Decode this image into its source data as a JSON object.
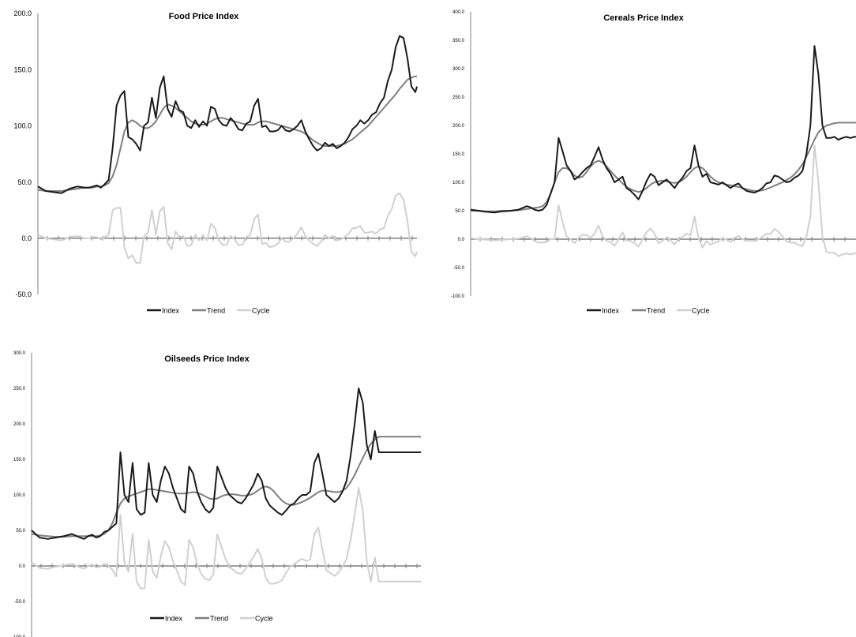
{
  "chart_data": [
    {
      "type": "line",
      "title": "Food Price Index",
      "xlabel": "",
      "ylabel": "",
      "ylim": [
        -50,
        200
      ],
      "y_ticks": [
        "200.0",
        "150.0",
        "100.0",
        "50.0",
        "0.0",
        "-50.0"
      ],
      "grid": false,
      "legend_position": "bottom",
      "x": [
        0,
        10,
        20,
        30,
        40,
        50,
        60,
        65,
        70,
        75,
        80,
        85,
        90,
        95,
        100,
        105,
        110,
        115,
        120,
        125,
        130,
        135,
        140,
        145,
        150,
        155,
        160,
        165,
        170,
        175,
        180,
        185,
        190,
        195,
        200,
        205,
        210,
        215,
        220,
        225,
        230,
        235,
        240,
        245,
        250,
        255,
        260,
        265,
        270,
        275,
        280,
        285,
        290,
        295,
        300,
        305,
        310,
        315,
        320,
        325,
        330,
        335,
        340,
        345,
        350,
        355,
        360,
        365,
        370,
        375,
        380,
        385,
        390,
        395,
        400,
        405,
        410,
        415,
        420,
        425,
        430,
        435,
        440,
        445,
        450,
        455,
        460,
        465,
        470,
        475,
        480,
        482
      ],
      "series": [
        {
          "name": "Index",
          "color": "#1a1a1a",
          "values": [
            46,
            42,
            41,
            40,
            44,
            46,
            45,
            45,
            46,
            47,
            45,
            48,
            52,
            80,
            118,
            127,
            131,
            90,
            88,
            84,
            78,
            100,
            103,
            125,
            107,
            134,
            144,
            115,
            108,
            122,
            114,
            112,
            100,
            98,
            105,
            99,
            104,
            100,
            117,
            115,
            105,
            101,
            100,
            107,
            103,
            97,
            96,
            102,
            104,
            118,
            124,
            99,
            100,
            95,
            95,
            96,
            100,
            96,
            95,
            97,
            100,
            105,
            95,
            88,
            82,
            78,
            80,
            85,
            82,
            84,
            80,
            82,
            85,
            90,
            97,
            100,
            105,
            102,
            105,
            110,
            112,
            120,
            125,
            140,
            150,
            170,
            180,
            178,
            160,
            135,
            130,
            135
          ]
        },
        {
          "name": "Trend",
          "color": "#7f7f7f",
          "values": [
            43,
            42,
            42,
            42,
            43,
            44,
            45,
            45,
            45,
            46,
            46,
            47,
            49,
            55,
            65,
            80,
            95,
            103,
            105,
            103,
            100,
            98,
            98,
            100,
            104,
            110,
            116,
            119,
            118,
            116,
            113,
            110,
            107,
            104,
            102,
            101,
            101,
            102,
            104,
            106,
            107,
            107,
            106,
            105,
            104,
            103,
            102,
            101,
            101,
            101,
            103,
            104,
            104,
            103,
            102,
            101,
            100,
            99,
            98,
            97,
            96,
            95,
            93,
            90,
            87,
            85,
            83,
            82,
            82,
            82,
            82,
            83,
            84,
            86,
            88,
            91,
            94,
            97,
            100,
            104,
            108,
            112,
            116,
            120,
            124,
            128,
            133,
            137,
            141,
            143,
            144,
            144
          ]
        },
        {
          "name": "Cycle",
          "color": "#d0d0d0",
          "values": [
            3,
            0,
            -1,
            -2,
            1,
            2,
            0,
            0,
            1,
            1,
            -1,
            1,
            3,
            25,
            27,
            27,
            -8,
            -18,
            -15,
            -22,
            -22,
            2,
            5,
            25,
            3,
            24,
            28,
            -4,
            -10,
            6,
            1,
            2,
            -7,
            -6,
            3,
            -2,
            3,
            -2,
            13,
            9,
            -2,
            -6,
            -6,
            2,
            -1,
            -6,
            -6,
            1,
            3,
            17,
            21,
            -5,
            -4,
            -8,
            -7,
            -5,
            0,
            -3,
            -3,
            0,
            4,
            10,
            2,
            -2,
            -5,
            -7,
            -3,
            3,
            0,
            2,
            -2,
            -1,
            1,
            4,
            9,
            9,
            11,
            5,
            5,
            6,
            4,
            8,
            9,
            20,
            26,
            38,
            40,
            34,
            15,
            -12,
            -16,
            -12
          ]
        }
      ]
    },
    {
      "type": "line",
      "title": "Cereals Price Index",
      "xlabel": "",
      "ylabel": "",
      "ylim": [
        -100,
        400
      ],
      "y_ticks": [
        "400.0",
        "350.0",
        "300.0",
        "250.0",
        "200.0",
        "150.0",
        "100.0",
        "50.0",
        "0.0",
        "-50.0",
        "-100.0"
      ],
      "grid": false,
      "legend_position": "bottom",
      "x": [
        0,
        10,
        20,
        30,
        40,
        50,
        60,
        65,
        70,
        75,
        80,
        85,
        90,
        95,
        100,
        105,
        110,
        115,
        120,
        125,
        130,
        135,
        140,
        145,
        150,
        155,
        160,
        165,
        170,
        175,
        180,
        185,
        190,
        195,
        200,
        205,
        210,
        215,
        220,
        225,
        230,
        235,
        240,
        245,
        250,
        255,
        260,
        265,
        270,
        275,
        280,
        285,
        290,
        295,
        300,
        305,
        310,
        315,
        320,
        325,
        330,
        335,
        340,
        345,
        350,
        355,
        360,
        365,
        370,
        375,
        380,
        385,
        390,
        395,
        400,
        405,
        410,
        415,
        420,
        425,
        430,
        435,
        440,
        445,
        450,
        455,
        460,
        465,
        470,
        475,
        480,
        482
      ],
      "series": [
        {
          "name": "Index",
          "color": "#1a1a1a",
          "values": [
            52,
            50,
            48,
            47,
            49,
            50,
            52,
            55,
            58,
            56,
            52,
            50,
            52,
            60,
            80,
            100,
            178,
            155,
            130,
            120,
            105,
            110,
            118,
            125,
            130,
            145,
            162,
            140,
            125,
            115,
            100,
            105,
            110,
            90,
            85,
            78,
            70,
            85,
            102,
            115,
            110,
            95,
            100,
            105,
            98,
            90,
            100,
            108,
            120,
            125,
            165,
            130,
            110,
            115,
            100,
            98,
            96,
            100,
            95,
            90,
            95,
            98,
            90,
            85,
            83,
            82,
            85,
            90,
            98,
            100,
            112,
            110,
            105,
            100,
            102,
            108,
            112,
            120,
            150,
            200,
            340,
            290,
            200,
            178,
            178,
            180,
            175,
            178,
            180,
            178,
            180,
            180
          ]
        },
        {
          "name": "Trend",
          "color": "#7f7f7f",
          "values": [
            50,
            50,
            49,
            49,
            50,
            50,
            51,
            52,
            53,
            54,
            55,
            56,
            58,
            65,
            80,
            100,
            118,
            125,
            125,
            120,
            112,
            108,
            110,
            118,
            128,
            135,
            138,
            135,
            128,
            120,
            112,
            105,
            98,
            92,
            88,
            85,
            83,
            85,
            90,
            96,
            100,
            102,
            103,
            102,
            100,
            99,
            100,
            104,
            110,
            118,
            125,
            128,
            125,
            118,
            110,
            104,
            100,
            98,
            96,
            95,
            93,
            92,
            90,
            88,
            86,
            85,
            85,
            86,
            88,
            91,
            94,
            97,
            100,
            104,
            108,
            114,
            122,
            132,
            145,
            160,
            175,
            188,
            195,
            200,
            202,
            204,
            205,
            205,
            205,
            205,
            205,
            205
          ]
        },
        {
          "name": "Cycle",
          "color": "#d0d0d0",
          "values": [
            2,
            0,
            -1,
            -2,
            -1,
            0,
            1,
            3,
            5,
            2,
            -3,
            -6,
            -6,
            -5,
            0,
            0,
            60,
            30,
            5,
            0,
            -7,
            2,
            8,
            7,
            2,
            10,
            24,
            5,
            -3,
            -5,
            -12,
            0,
            12,
            -2,
            -3,
            -7,
            -13,
            0,
            12,
            19,
            10,
            -7,
            -3,
            3,
            -2,
            -9,
            0,
            4,
            10,
            7,
            40,
            2,
            -15,
            -3,
            -10,
            -6,
            -4,
            2,
            -1,
            -5,
            2,
            6,
            0,
            -3,
            -3,
            -3,
            0,
            4,
            10,
            9,
            18,
            13,
            5,
            -4,
            -6,
            -6,
            -10,
            -12,
            5,
            40,
            165,
            100,
            5,
            -22,
            -24,
            -24,
            -30,
            -27,
            -25,
            -27,
            -25,
            -25
          ]
        }
      ]
    },
    {
      "type": "line",
      "title": "Oilseeds Price Index",
      "xlabel": "",
      "ylabel": "",
      "ylim": [
        -100,
        300
      ],
      "y_ticks": [
        "300.0",
        "250.0",
        "200.0",
        "150.0",
        "100.0",
        "50.0",
        "0.0",
        "-50.0",
        "-100.0"
      ],
      "grid": false,
      "legend_position": "bottom",
      "x": [
        0,
        10,
        20,
        30,
        40,
        50,
        60,
        65,
        70,
        75,
        80,
        85,
        90,
        95,
        100,
        105,
        110,
        115,
        120,
        125,
        130,
        135,
        140,
        145,
        150,
        155,
        160,
        165,
        170,
        175,
        180,
        185,
        190,
        195,
        200,
        205,
        210,
        215,
        220,
        225,
        230,
        235,
        240,
        245,
        250,
        255,
        260,
        265,
        270,
        275,
        280,
        285,
        290,
        295,
        300,
        305,
        310,
        315,
        320,
        325,
        330,
        335,
        340,
        345,
        350,
        355,
        360,
        365,
        370,
        375,
        380,
        385,
        390,
        395,
        400,
        405,
        410,
        415,
        420,
        425,
        430,
        435,
        440,
        445,
        450,
        455,
        460,
        465,
        470,
        475,
        480,
        482
      ],
      "series": [
        {
          "name": "Index",
          "color": "#1a1a1a",
          "values": [
            50,
            40,
            38,
            40,
            42,
            45,
            40,
            38,
            42,
            44,
            40,
            42,
            48,
            50,
            55,
            60,
            160,
            100,
            90,
            145,
            80,
            72,
            75,
            145,
            100,
            90,
            120,
            140,
            130,
            110,
            95,
            80,
            75,
            140,
            130,
            105,
            90,
            80,
            75,
            82,
            140,
            125,
            110,
            100,
            95,
            90,
            88,
            95,
            105,
            115,
            130,
            120,
            95,
            85,
            80,
            75,
            72,
            78,
            85,
            88,
            95,
            100,
            100,
            105,
            145,
            158,
            130,
            100,
            95,
            90,
            95,
            105,
            120,
            155,
            200,
            250,
            230,
            170,
            150,
            190,
            160,
            160,
            160,
            160,
            160,
            160,
            160,
            160,
            160,
            160,
            160,
            160
          ]
        },
        {
          "name": "Trend",
          "color": "#7f7f7f",
          "values": [
            45,
            43,
            42,
            41,
            41,
            42,
            42,
            42,
            42,
            42,
            42,
            43,
            45,
            50,
            60,
            75,
            88,
            95,
            98,
            100,
            102,
            104,
            106,
            108,
            108,
            107,
            106,
            105,
            104,
            103,
            102,
            102,
            102,
            103,
            104,
            103,
            101,
            98,
            95,
            94,
            95,
            98,
            100,
            101,
            101,
            100,
            99,
            99,
            100,
            102,
            106,
            110,
            112,
            110,
            105,
            98,
            92,
            88,
            86,
            86,
            88,
            90,
            93,
            96,
            100,
            104,
            106,
            106,
            105,
            104,
            104,
            106,
            110,
            118,
            128,
            140,
            152,
            163,
            172,
            178,
            182,
            182,
            182,
            182,
            182,
            182,
            182,
            182,
            182,
            182,
            182,
            182
          ]
        },
        {
          "name": "Cycle",
          "color": "#d0d0d0",
          "values": [
            5,
            -3,
            -4,
            -1,
            1,
            3,
            -2,
            -4,
            0,
            2,
            -2,
            -1,
            3,
            0,
            -5,
            -15,
            72,
            5,
            -8,
            45,
            -22,
            -32,
            -31,
            37,
            -8,
            -17,
            14,
            35,
            26,
            7,
            -7,
            -22,
            -27,
            37,
            26,
            2,
            -11,
            -18,
            -20,
            -12,
            45,
            27,
            10,
            -1,
            -6,
            -10,
            -11,
            -4,
            5,
            13,
            24,
            10,
            -17,
            -25,
            -25,
            -23,
            -20,
            -10,
            -1,
            2,
            7,
            10,
            7,
            9,
            45,
            54,
            24,
            -6,
            -10,
            -14,
            -9,
            -1,
            10,
            37,
            72,
            110,
            78,
            7,
            -22,
            12,
            -22,
            -22,
            -22,
            -22,
            -22,
            -22,
            -22,
            -22,
            -22,
            -22,
            -22,
            -22
          ]
        }
      ]
    }
  ]
}
